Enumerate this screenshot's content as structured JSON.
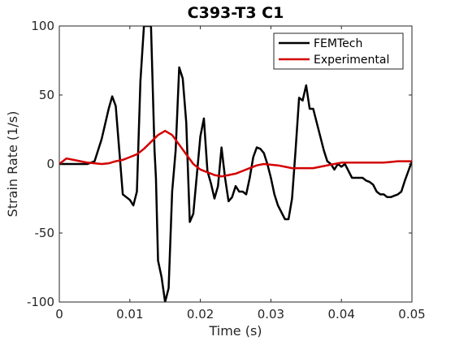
{
  "chart_data": {
    "type": "line",
    "title": "C393-T3 C1",
    "xlabel": "Time (s)",
    "ylabel": "Strain Rate (1/s)",
    "xlim": [
      0,
      0.05
    ],
    "ylim": [
      -100,
      100
    ],
    "xticks": [
      0,
      0.01,
      0.02,
      0.03,
      0.04,
      0.05
    ],
    "xtick_labels": [
      "0",
      "0.01",
      "0.02",
      "0.03",
      "0.04",
      "0.05"
    ],
    "yticks": [
      -100,
      -50,
      0,
      50,
      100
    ],
    "ytick_labels": [
      "-100",
      "-50",
      "0",
      "50",
      "100"
    ],
    "grid": false,
    "legend_position": "top-right",
    "series": [
      {
        "name": "FEMTech",
        "color": "#000000",
        "x": [
          0,
          0.002,
          0.004,
          0.005,
          0.006,
          0.007,
          0.0075,
          0.008,
          0.0085,
          0.009,
          0.0095,
          0.01,
          0.0105,
          0.011,
          0.0115,
          0.012,
          0.0122,
          0.0125,
          0.013,
          0.0135,
          0.0137,
          0.014,
          0.0145,
          0.015,
          0.0155,
          0.016,
          0.0165,
          0.017,
          0.0175,
          0.018,
          0.0185,
          0.019,
          0.0195,
          0.02,
          0.0205,
          0.021,
          0.0215,
          0.022,
          0.0225,
          0.023,
          0.0235,
          0.024,
          0.0245,
          0.025,
          0.0255,
          0.026,
          0.0265,
          0.027,
          0.0275,
          0.028,
          0.0285,
          0.029,
          0.0295,
          0.03,
          0.0305,
          0.031,
          0.0315,
          0.032,
          0.0325,
          0.033,
          0.0335,
          0.034,
          0.0345,
          0.035,
          0.0355,
          0.036,
          0.0365,
          0.037,
          0.0375,
          0.038,
          0.0385,
          0.039,
          0.0395,
          0.04,
          0.0405,
          0.041,
          0.0415,
          0.042,
          0.0425,
          0.043,
          0.0435,
          0.044,
          0.0445,
          0.045,
          0.0455,
          0.046,
          0.0465,
          0.047,
          0.0475,
          0.048,
          0.0485,
          0.049,
          0.0495,
          0.05
        ],
        "y": [
          0,
          0,
          0,
          2,
          18,
          40,
          49,
          42,
          10,
          -22,
          -24,
          -26,
          -30,
          -20,
          60,
          100,
          100,
          100,
          100,
          10,
          -10,
          -70,
          -82,
          -100,
          -90,
          -20,
          10,
          70,
          62,
          30,
          -42,
          -36,
          -8,
          20,
          33,
          -5,
          -14,
          -25,
          -16,
          12,
          -10,
          -27,
          -24,
          -16,
          -20,
          -20,
          -22,
          -10,
          5,
          12,
          11,
          8,
          0,
          -10,
          -22,
          -30,
          -35,
          -40,
          -40,
          -25,
          10,
          48,
          46,
          57,
          40,
          40,
          30,
          20,
          10,
          2,
          0,
          -4,
          0,
          -2,
          0,
          -5,
          -10,
          -10,
          -10,
          -10,
          -12,
          -13,
          -15,
          -20,
          -22,
          -22,
          -24,
          -24,
          -23,
          -22,
          -20,
          -12,
          -5,
          2
        ]
      },
      {
        "name": "Experimental",
        "color": "#d40000",
        "x": [
          0,
          0.0005,
          0.001,
          0.002,
          0.003,
          0.004,
          0.005,
          0.006,
          0.007,
          0.008,
          0.009,
          0.01,
          0.011,
          0.012,
          0.013,
          0.014,
          0.015,
          0.016,
          0.017,
          0.018,
          0.019,
          0.02,
          0.021,
          0.022,
          0.023,
          0.024,
          0.025,
          0.026,
          0.027,
          0.028,
          0.029,
          0.03,
          0.031,
          0.032,
          0.033,
          0.034,
          0.035,
          0.036,
          0.037,
          0.038,
          0.039,
          0.04,
          0.041,
          0.042,
          0.043,
          0.044,
          0.045,
          0.046,
          0.047,
          0.048,
          0.049,
          0.05
        ],
        "y": [
          0,
          2,
          4,
          3,
          2,
          1,
          0.5,
          0,
          0.5,
          2,
          3,
          5,
          7,
          11,
          16,
          21,
          24,
          21,
          14,
          7,
          0,
          -4,
          -6,
          -8,
          -9,
          -8,
          -7,
          -5,
          -3,
          -1,
          0,
          -0.5,
          -1,
          -2,
          -3,
          -3,
          -3,
          -3,
          -2,
          -1,
          0,
          1,
          1,
          1,
          1,
          1,
          1,
          1,
          1.5,
          2,
          2,
          2
        ]
      }
    ]
  }
}
